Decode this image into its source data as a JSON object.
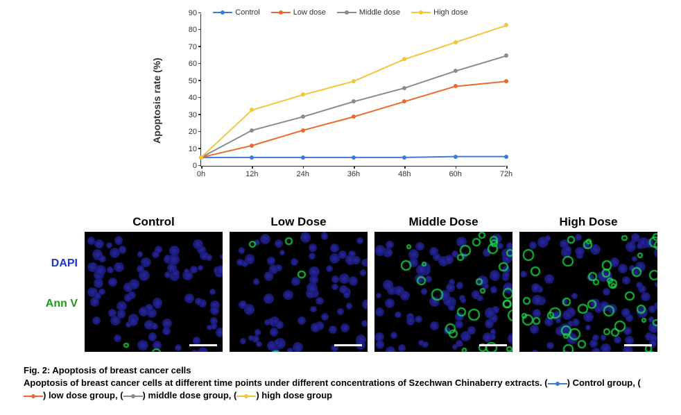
{
  "chart": {
    "type": "line",
    "ylabel": "Apoptosis rate  (%)",
    "ylim": [
      0,
      90
    ],
    "ytick_step": 10,
    "xcategories": [
      "0h",
      "12h",
      "24h",
      "36h",
      "48h",
      "60h",
      "72h"
    ],
    "axis_color": "#333333",
    "label_fontsize": 14,
    "tick_fontsize": 11,
    "marker_size": 6,
    "line_width": 2,
    "series": [
      {
        "name": "Control",
        "color": "#3a7bd5",
        "values": [
          5,
          5,
          5,
          5,
          5,
          5.5,
          5.5
        ]
      },
      {
        "name": "Low dose",
        "color": "#e96a2b",
        "values": [
          5,
          12,
          21,
          29,
          38,
          47,
          50
        ]
      },
      {
        "name": "Middle dose",
        "color": "#8a8a8a",
        "values": [
          5,
          21,
          29,
          38,
          46,
          56,
          65
        ]
      },
      {
        "name": "High dose",
        "color": "#f2c63a",
        "values": [
          5,
          33,
          42,
          50,
          63,
          73,
          83
        ]
      }
    ]
  },
  "microscopy": {
    "dapi_label": "DAPI",
    "annv_label": "Ann V",
    "dapi_color": "#2233cc",
    "annv_color": "#1b9b1b",
    "title_fontsize": 17,
    "panels": [
      {
        "title": "Control",
        "green_intensity": 0.02
      },
      {
        "title": "Low Dose",
        "green_intensity": 0.05
      },
      {
        "title": "Middle Dose",
        "green_intensity": 0.35
      },
      {
        "title": "High Dose",
        "green_intensity": 0.55
      }
    ],
    "blue_base": "#2a2aa8",
    "green_base": "#1de04a",
    "background": "#000000"
  },
  "caption": {
    "fig_label": "Fig. 2: Apoptosis of breast cancer cells",
    "line2_a": "Apoptosis of breast cancer cells at different time points under different concentrations of Szechwan Chinaberry extracts. (",
    "line2_b": ")",
    "line3_a": "Control group, (",
    "line3_b": ") low dose group, (",
    "line3_c": ") middle dose group, (",
    "line3_d": ") high dose group"
  }
}
